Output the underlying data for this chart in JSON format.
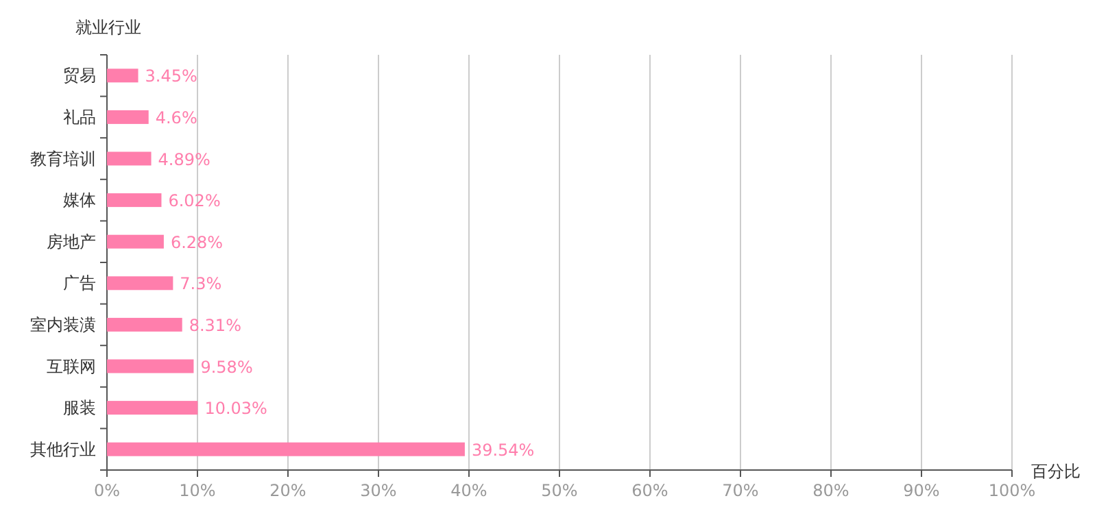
{
  "chart_data": {
    "type": "bar",
    "orientation": "horizontal",
    "xlabel": "百分比",
    "ylabel": "就业行业",
    "categories": [
      "贸易",
      "礼品",
      "教育培训",
      "媒体",
      "房地产",
      "广告",
      "室内装潢",
      "互联网",
      "服装",
      "其他行业"
    ],
    "values": [
      3.45,
      4.6,
      4.89,
      6.02,
      6.28,
      7.3,
      8.31,
      9.58,
      10.03,
      39.54
    ],
    "value_labels": [
      "3.45%",
      "4.6%",
      "4.89%",
      "6.02%",
      "6.28%",
      "7.3%",
      "8.31%",
      "9.58%",
      "10.03%",
      "39.54%"
    ],
    "color": "#ff7eac",
    "xlim": [
      0,
      100
    ],
    "xticks": [
      {
        "value": 0,
        "label": "0%"
      },
      {
        "value": 10,
        "label": "10%"
      },
      {
        "value": 20,
        "label": "20%"
      },
      {
        "value": 30,
        "label": "30%"
      },
      {
        "value": 40,
        "label": "40%"
      },
      {
        "value": 50,
        "label": "50%"
      },
      {
        "value": 60,
        "label": "60%"
      },
      {
        "value": 70,
        "label": "70%"
      },
      {
        "value": 80,
        "label": "80%"
      },
      {
        "value": 90,
        "label": "90%"
      },
      {
        "value": 100,
        "label": "100%"
      }
    ],
    "grid": "x"
  }
}
